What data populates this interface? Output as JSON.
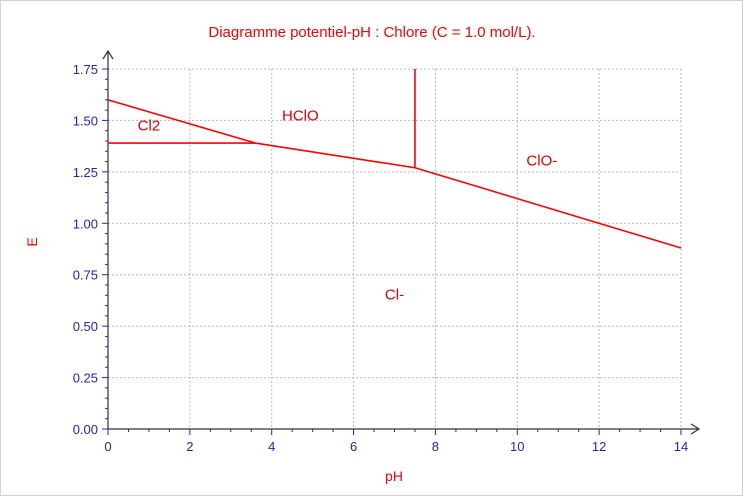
{
  "chart_data": {
    "type": "line",
    "title": "Diagramme potentiel-pH  : Chlore (C = 1.0 mol/L).",
    "xlabel": "pH",
    "ylabel": "E",
    "xlim": [
      0,
      14
    ],
    "ylim": [
      0,
      1.75
    ],
    "x_ticks": [
      "0",
      "2",
      "4",
      "6",
      "8",
      "10",
      "12",
      "14"
    ],
    "y_ticks": [
      "0.00",
      "0.25",
      "0.50",
      "0.75",
      "1.00",
      "1.25",
      "1.50",
      "1.75"
    ],
    "x_tick_values": [
      0,
      2,
      4,
      6,
      8,
      10,
      12,
      14
    ],
    "y_tick_values": [
      0,
      0.25,
      0.5,
      0.75,
      1.0,
      1.25,
      1.5,
      1.75
    ],
    "grid": true,
    "line_color": "#ff0000",
    "tick_color": "#2222cc",
    "lines": [
      {
        "x": [
          0,
          3.6
        ],
        "y": [
          1.6,
          1.39
        ]
      },
      {
        "x": [
          0,
          3.6
        ],
        "y": [
          1.39,
          1.39
        ]
      },
      {
        "x": [
          3.6,
          7.5
        ],
        "y": [
          1.39,
          1.27
        ]
      },
      {
        "x": [
          7.5,
          7.5
        ],
        "y": [
          1.27,
          1.75
        ]
      },
      {
        "x": [
          7.5,
          14
        ],
        "y": [
          1.27,
          0.88
        ]
      }
    ],
    "annotations": [
      {
        "text": "Cl2",
        "x": 1.0,
        "y": 1.45
      },
      {
        "text": "HClO",
        "x": 4.7,
        "y": 1.5
      },
      {
        "text": "ClO-",
        "x": 10.6,
        "y": 1.28
      },
      {
        "text": "Cl-",
        "x": 7.0,
        "y": 0.63
      }
    ]
  }
}
